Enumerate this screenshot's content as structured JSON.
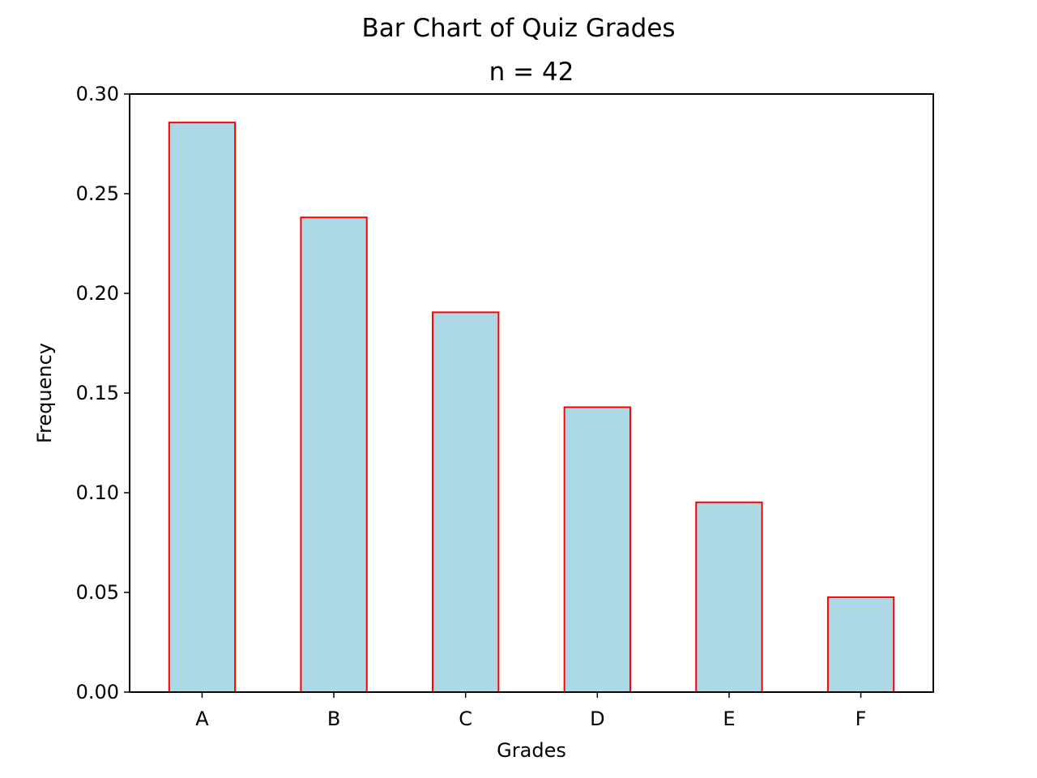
{
  "chart_data": {
    "type": "bar",
    "title": "Bar Chart of Quiz Grades",
    "subtitle": "n = 42",
    "xlabel": "Grades",
    "ylabel": "Frequency",
    "categories": [
      "A",
      "B",
      "C",
      "D",
      "E",
      "F"
    ],
    "values": [
      0.2857,
      0.2381,
      0.1905,
      0.1429,
      0.0952,
      0.0476
    ],
    "ylim": [
      0,
      0.3
    ],
    "yticks": [
      0.0,
      0.05,
      0.1,
      0.15,
      0.2,
      0.25,
      0.3
    ],
    "ytick_labels": [
      "0.00",
      "0.05",
      "0.10",
      "0.15",
      "0.20",
      "0.25",
      "0.30"
    ],
    "grid": false,
    "legend": "none",
    "bar_fill_color": "#add8e6",
    "bar_edge_color": "#ff0000"
  }
}
